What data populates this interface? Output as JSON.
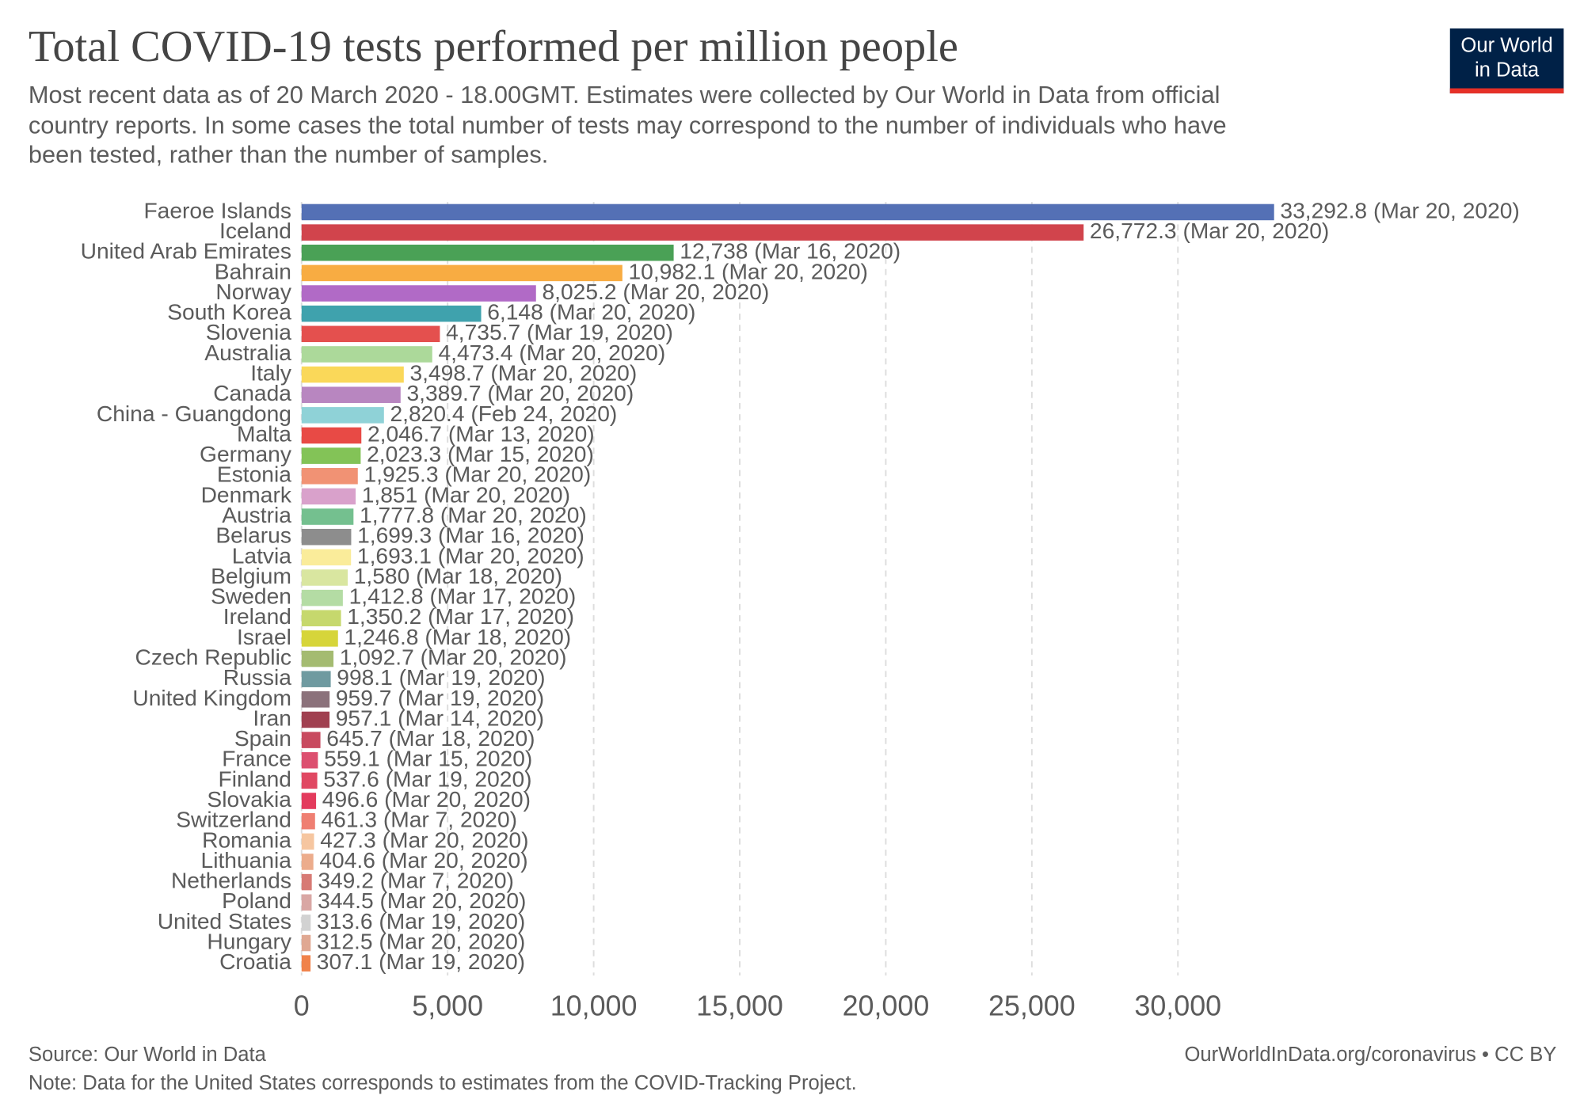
{
  "chart_data": {
    "type": "bar",
    "orientation": "horizontal",
    "title": "Total COVID-19 tests performed per million people",
    "subtitle": [
      "Most recent data as of 20 March 2020 - 18.00GMT. Estimates were collected by Our World in Data from official",
      "country reports. In some cases the total number of tests may correspond to the number of individuals who have",
      "been tested, rather than the number of samples."
    ],
    "logo": [
      "Our World",
      "in Data"
    ],
    "source": "Source: Our World in Data",
    "note": "Note: Data for the United States corresponds to estimates from the COVID-Tracking Project.",
    "url": "OurWorldInData.org/coronavirus • CC BY",
    "categories": [
      "Faeroe Islands",
      "Iceland",
      "United Arab Emirates",
      "Bahrain",
      "Norway",
      "South Korea",
      "Slovenia",
      "Australia",
      "Italy",
      "Canada",
      "China - Guangdong",
      "Malta",
      "Germany",
      "Estonia",
      "Denmark",
      "Austria",
      "Belarus",
      "Latvia",
      "Belgium",
      "Sweden",
      "Ireland",
      "Israel",
      "Czech Republic",
      "Russia",
      "United Kingdom",
      "Iran",
      "Spain",
      "France",
      "Finland",
      "Slovakia",
      "Switzerland",
      "Romania",
      "Lithuania",
      "Netherlands",
      "Poland",
      "United States",
      "Hungary",
      "Croatia"
    ],
    "values": [
      33292.8,
      26772.3,
      12738,
      10982.1,
      8025.2,
      6148,
      4735.7,
      4473.4,
      3498.7,
      3389.7,
      2820.4,
      2046.7,
      2023.3,
      1925.3,
      1851,
      1777.8,
      1699.3,
      1693.1,
      1580,
      1412.8,
      1350.2,
      1246.8,
      1092.7,
      998.1,
      959.7,
      957.1,
      645.7,
      559.1,
      537.6,
      496.6,
      461.3,
      427.3,
      404.6,
      349.2,
      344.5,
      313.6,
      312.5,
      307.1
    ],
    "value_labels": [
      "33,292.8 (Mar 20, 2020)",
      "26,772.3 (Mar 20, 2020)",
      "12,738 (Mar 16, 2020)",
      "10,982.1 (Mar 20, 2020)",
      "8,025.2 (Mar 20, 2020)",
      "6,148 (Mar 20, 2020)",
      "4,735.7 (Mar 19, 2020)",
      "4,473.4 (Mar 20, 2020)",
      "3,498.7 (Mar 20, 2020)",
      "3,389.7 (Mar 20, 2020)",
      "2,820.4 (Feb 24, 2020)",
      "2,046.7 (Mar 13, 2020)",
      "2,023.3 (Mar 15, 2020)",
      "1,925.3 (Mar 20, 2020)",
      "1,851 (Mar 20, 2020)",
      "1,777.8 (Mar 20, 2020)",
      "1,699.3 (Mar 16, 2020)",
      "1,693.1 (Mar 20, 2020)",
      "1,580 (Mar 18, 2020)",
      "1,412.8 (Mar 17, 2020)",
      "1,350.2 (Mar 17, 2020)",
      "1,246.8 (Mar 18, 2020)",
      "1,092.7 (Mar 20, 2020)",
      "998.1 (Mar 19, 2020)",
      "959.7 (Mar 19, 2020)",
      "957.1 (Mar 14, 2020)",
      "645.7 (Mar 18, 2020)",
      "559.1 (Mar 15, 2020)",
      "537.6 (Mar 19, 2020)",
      "496.6 (Mar 20, 2020)",
      "461.3 (Mar 7, 2020)",
      "427.3 (Mar 20, 2020)",
      "404.6 (Mar 20, 2020)",
      "349.2 (Mar 7, 2020)",
      "344.5 (Mar 20, 2020)",
      "313.6 (Mar 19, 2020)",
      "312.5 (Mar 20, 2020)",
      "307.1 (Mar 19, 2020)"
    ],
    "colors": [
      "#5470b5",
      "#d1444c",
      "#4aa156",
      "#f8ac42",
      "#b16ac6",
      "#3fa2ad",
      "#e4504e",
      "#acd99a",
      "#fad859",
      "#b886c0",
      "#8fd2d7",
      "#e84a45",
      "#83c357",
      "#f19274",
      "#d9a1cb",
      "#74c08f",
      "#8d8d8d",
      "#faec9a",
      "#d9e6a0",
      "#b4dca4",
      "#c6d86d",
      "#d6d53a",
      "#a4bb71",
      "#6f9aa0",
      "#8b727b",
      "#a04050",
      "#c84a5f",
      "#dc4f6f",
      "#e04862",
      "#e33b5d",
      "#ef7f72",
      "#f6c6a0",
      "#ecac8c",
      "#d77a74",
      "#d9a7a4",
      "#d2d2d2",
      "#e0a892",
      "#f0824a"
    ],
    "xlim": [
      0,
      33300
    ],
    "xticks": [
      0,
      {
        "value": 5000,
        "label": "5,000"
      },
      {
        "value": 10000,
        "label": "10,000"
      },
      {
        "value": 15000,
        "label": "15,000"
      },
      {
        "value": 20000,
        "label": "20,000"
      },
      {
        "value": 25000,
        "label": "25,000"
      },
      {
        "value": 30000,
        "label": "30,000"
      }
    ],
    "grid": true
  }
}
